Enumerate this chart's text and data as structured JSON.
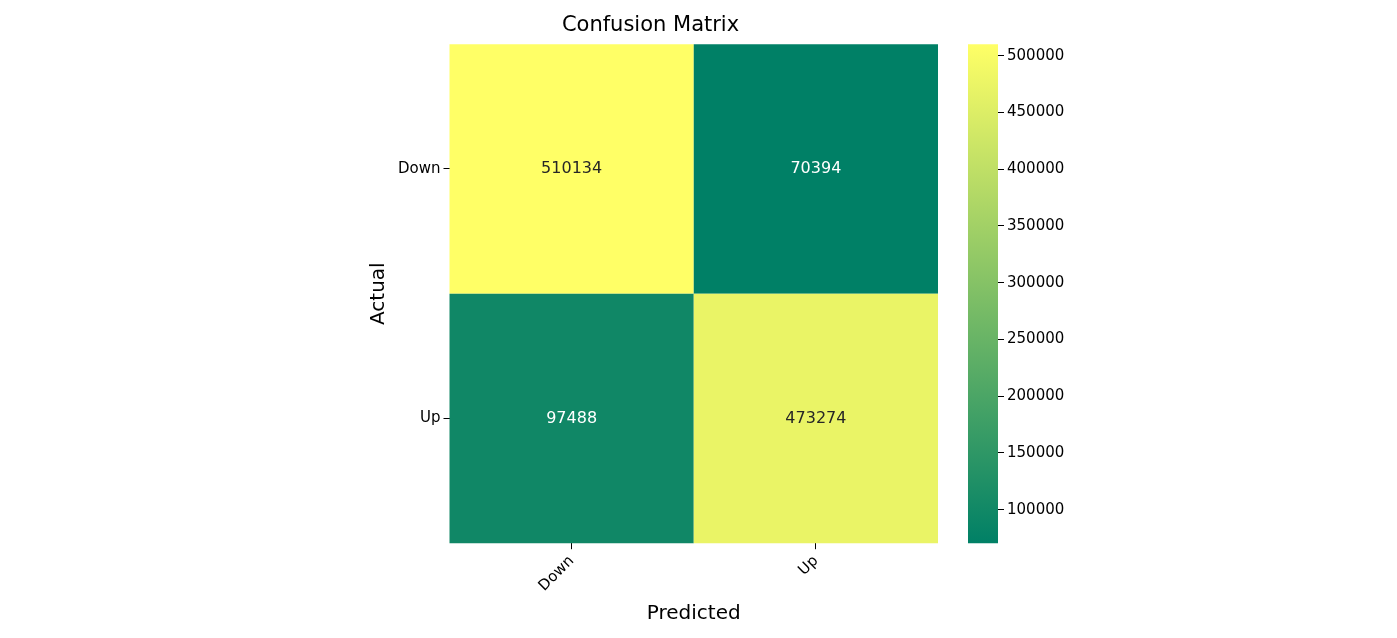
{
  "chart_data": {
    "type": "heatmap",
    "title": "Confusion Matrix",
    "xlabel": "Predicted",
    "ylabel": "Actual",
    "categories": [
      "Down",
      "Up"
    ],
    "y_categories": [
      "Down",
      "Up"
    ],
    "cells": [
      [
        510134,
        70394
      ],
      [
        97488,
        473274
      ]
    ],
    "data_labels": true,
    "clim": [
      70394,
      510134
    ],
    "cticks": [
      100000,
      150000,
      200000,
      250000,
      300000,
      350000,
      400000,
      450000,
      500000
    ]
  }
}
